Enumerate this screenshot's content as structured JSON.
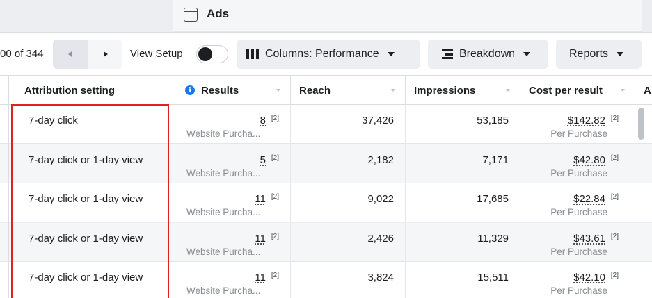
{
  "ads_panel": {
    "title": "Ads",
    "icon": "window-icon"
  },
  "toolbar": {
    "range_text": "00 of 344",
    "prev_icon": "chevron-left-icon",
    "next_icon": "chevron-right-icon",
    "view_setup_label": "View Setup",
    "view_setup_on": false,
    "columns_label": "Columns: Performance",
    "columns_icon": "columns-icon",
    "breakdown_label": "Breakdown",
    "breakdown_icon": "breakdown-icon",
    "reports_label": "Reports"
  },
  "table": {
    "headers": {
      "attribution": "Attribution setting",
      "results": "Results",
      "reach": "Reach",
      "impressions": "Impressions",
      "cost_per_result": "Cost per result",
      "next_partial": "A"
    },
    "rows": [
      {
        "attribution": "7-day click",
        "results": "8",
        "results_note": "[2]",
        "results_type": "Website Purcha...",
        "reach": "37,426",
        "impressions": "53,185",
        "cost_per_result": "$142.82",
        "cpr_note": "[2]",
        "cpr_type": "Per Purchase"
      },
      {
        "attribution": "7-day click or 1-day view",
        "results": "5",
        "results_note": "[2]",
        "results_type": "Website Purcha...",
        "reach": "2,182",
        "impressions": "7,171",
        "cost_per_result": "$42.80",
        "cpr_note": "[2]",
        "cpr_type": "Per Purchase"
      },
      {
        "attribution": "7-day click or 1-day view",
        "results": "11",
        "results_note": "[2]",
        "results_type": "Website Purcha...",
        "reach": "9,022",
        "impressions": "17,685",
        "cost_per_result": "$22.84",
        "cpr_note": "[2]",
        "cpr_type": "Per Purchase"
      },
      {
        "attribution": "7-day click or 1-day view",
        "results": "11",
        "results_note": "[2]",
        "results_type": "Website Purcha...",
        "reach": "2,426",
        "impressions": "11,329",
        "cost_per_result": "$43.61",
        "cpr_note": "[2]",
        "cpr_type": "Per Purchase"
      },
      {
        "attribution": "7-day click or 1-day view",
        "results": "11",
        "results_note": "[2]",
        "results_type": "Website Purcha...",
        "reach": "3,824",
        "impressions": "15,511",
        "cost_per_result": "$42.10",
        "cpr_note": "[2]",
        "cpr_type": "Per Purchase"
      }
    ]
  },
  "colors": {
    "highlight": "#e0221c",
    "info": "#1877f2",
    "row_alt": "#f5f6f7"
  }
}
